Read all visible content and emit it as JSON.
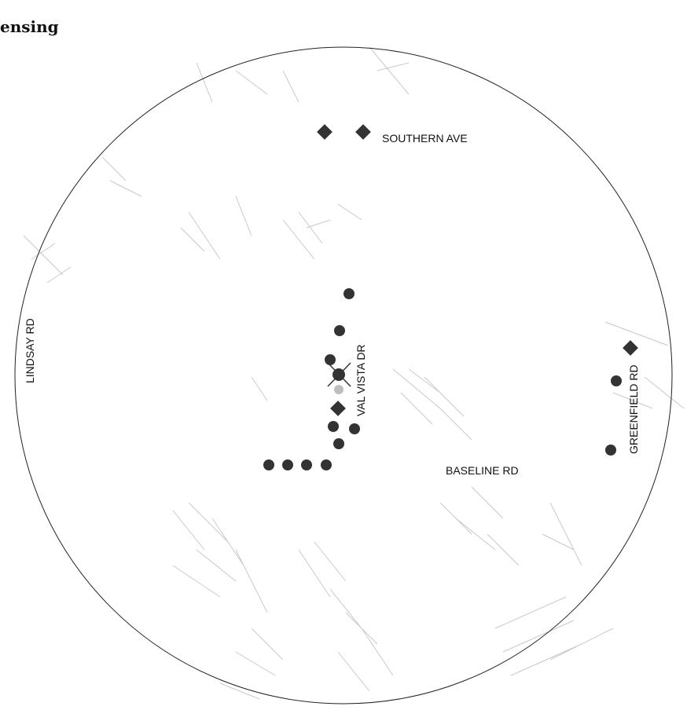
{
  "header": {
    "title_fragment": "ensing"
  },
  "map": {
    "roads": {
      "southern": "SOUTHERN AVE",
      "lindsay": "LINDSAY RD",
      "val_vista": "VAL VISTA DR",
      "greenfield": "GREENFIELD RD",
      "baseline": "BASELINE RD"
    },
    "colors": {
      "circle": "#222222",
      "marker": "#333333",
      "streets": "#c9c9c9"
    }
  }
}
